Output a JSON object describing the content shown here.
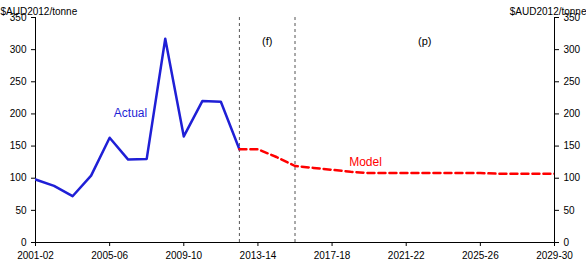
{
  "chart_data": {
    "type": "line",
    "y_label": "$AUD2012/tonne",
    "y2_label": "$AUD2012/tonne",
    "categories": [
      "2001-02",
      null,
      null,
      null,
      "2005-06",
      null,
      null,
      null,
      "2009-10",
      null,
      null,
      null,
      "2013-14",
      null,
      null,
      null,
      "2017-18",
      null,
      null,
      null,
      "2021-22",
      null,
      null,
      null,
      "2025-26",
      null,
      null,
      null,
      "2029-30"
    ],
    "series": [
      {
        "name": "Actual",
        "color": "#1f1fd6",
        "line_style": "solid",
        "values": [
          98,
          88,
          72,
          104,
          163,
          129,
          130,
          317,
          165,
          220,
          219,
          145,
          null,
          null,
          null,
          null,
          null,
          null,
          null,
          null,
          null,
          null,
          null,
          null,
          null,
          null,
          null,
          null,
          null
        ]
      },
      {
        "name": "Model",
        "color": "#ff0000",
        "line_style": "dashed",
        "values": [
          null,
          null,
          null,
          null,
          null,
          null,
          null,
          null,
          null,
          null,
          null,
          145,
          145,
          133,
          119,
          116,
          113,
          110,
          108,
          108,
          108,
          108,
          108,
          108,
          108,
          107,
          107,
          107,
          107
        ]
      }
    ],
    "periods": [
      {
        "label": "(f)",
        "start": 11,
        "end": 14
      },
      {
        "label": "(p)",
        "start": 14,
        "end": 28
      }
    ],
    "ylim": [
      0,
      350
    ],
    "yticks": [
      0,
      50,
      100,
      150,
      200,
      250,
      300,
      350
    ],
    "grid": false
  }
}
